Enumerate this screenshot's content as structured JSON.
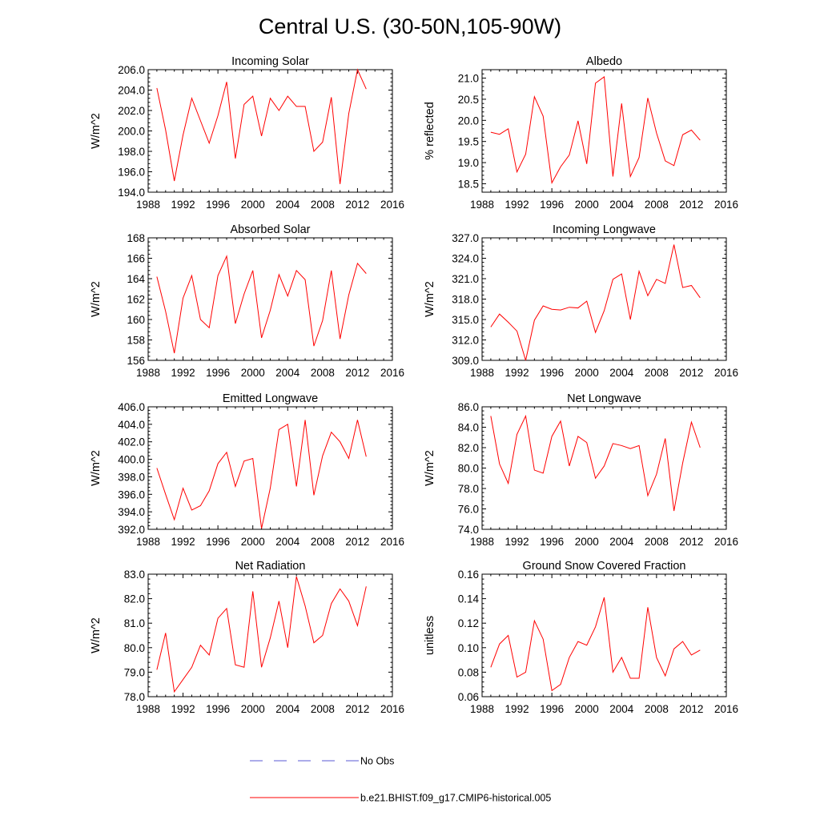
{
  "figure": {
    "title": "Central U.S. (30-50N,105-90W)",
    "legend": [
      {
        "label": "No Obs",
        "color": "#5a5ad6",
        "style": "dashed"
      },
      {
        "label": "b.e21.BHIST.f09_g17.CMIP6-historical.005",
        "color": "#ff0000",
        "style": "solid"
      }
    ]
  },
  "chart_data": [
    {
      "type": "line",
      "title": "Incoming Solar",
      "xlabel": "",
      "ylabel": "W/m^2",
      "xlim": [
        1988,
        2016
      ],
      "ylim": [
        194.0,
        206.0
      ],
      "xticks": [
        "1988",
        "1992",
        "1996",
        "2000",
        "2004",
        "2008",
        "2012",
        "2016"
      ],
      "yticks": [
        "194.0",
        "196.0",
        "198.0",
        "200.0",
        "202.0",
        "204.0",
        "206.0"
      ],
      "series": [
        {
          "name": "b.e21.BHIST.f09_g17.CMIP6-historical.005",
          "x": [
            1989,
            1990,
            1991,
            1992,
            1993,
            1994,
            1995,
            1996,
            1997,
            1998,
            1999,
            2000,
            2001,
            2002,
            2003,
            2004,
            2005,
            2006,
            2007,
            2008,
            2009,
            2010,
            2011,
            2012,
            2013
          ],
          "values": [
            204.2,
            200.1,
            195.1,
            199.6,
            203.2,
            201.0,
            198.8,
            201.5,
            204.8,
            197.3,
            202.6,
            203.4,
            199.5,
            203.2,
            202.0,
            203.4,
            202.4,
            202.4,
            198.0,
            198.9,
            203.3,
            194.8,
            201.7,
            206.0,
            204.1
          ]
        }
      ]
    },
    {
      "type": "line",
      "title": "Albedo",
      "xlabel": "",
      "ylabel": "% reflected",
      "xlim": [
        1988,
        2016
      ],
      "ylim": [
        18.3,
        21.2
      ],
      "xticks": [
        "1988",
        "1992",
        "1996",
        "2000",
        "2004",
        "2008",
        "2012",
        "2016"
      ],
      "yticks": [
        "18.5",
        "19.0",
        "19.5",
        "20.0",
        "20.5",
        "21.0"
      ],
      "series": [
        {
          "name": "b.e21.BHIST.f09_g17.CMIP6-historical.005",
          "x": [
            1989,
            1990,
            1991,
            1992,
            1993,
            1994,
            1995,
            1996,
            1997,
            1998,
            1999,
            2000,
            2001,
            2002,
            2003,
            2004,
            2005,
            2006,
            2007,
            2008,
            2009,
            2010,
            2011,
            2012,
            2013
          ],
          "values": [
            19.72,
            19.67,
            19.8,
            18.78,
            19.2,
            20.56,
            20.1,
            18.52,
            18.9,
            19.18,
            19.99,
            18.97,
            20.88,
            21.03,
            18.67,
            20.4,
            18.67,
            19.12,
            20.53,
            19.7,
            19.04,
            18.93,
            19.66,
            19.77,
            19.53
          ]
        }
      ]
    },
    {
      "type": "line",
      "title": "Absorbed Solar",
      "xlabel": "",
      "ylabel": "W/m^2",
      "xlim": [
        1988,
        2016
      ],
      "ylim": [
        156.0,
        168.0
      ],
      "xticks": [
        "1988",
        "1992",
        "1996",
        "2000",
        "2004",
        "2008",
        "2012",
        "2016"
      ],
      "yticks": [
        "156",
        "158",
        "160",
        "162",
        "164",
        "166",
        "168"
      ],
      "series": [
        {
          "name": "b.e21.BHIST.f09_g17.CMIP6-historical.005",
          "x": [
            1989,
            1990,
            1991,
            1992,
            1993,
            1994,
            1995,
            1996,
            1997,
            1998,
            1999,
            2000,
            2001,
            2002,
            2003,
            2004,
            2005,
            2006,
            2007,
            2008,
            2009,
            2010,
            2011,
            2012,
            2013
          ],
          "values": [
            164.2,
            160.8,
            156.7,
            162.1,
            164.3,
            160.0,
            159.2,
            164.3,
            166.2,
            159.6,
            162.5,
            164.8,
            158.2,
            160.9,
            164.4,
            162.3,
            164.8,
            163.9,
            157.4,
            159.9,
            164.8,
            158.1,
            162.4,
            165.5,
            164.5
          ]
        }
      ]
    },
    {
      "type": "line",
      "title": "Incoming Longwave",
      "xlabel": "",
      "ylabel": "W/m^2",
      "xlim": [
        1988,
        2016
      ],
      "ylim": [
        309.0,
        327.0
      ],
      "xticks": [
        "1988",
        "1992",
        "1996",
        "2000",
        "2004",
        "2008",
        "2012",
        "2016"
      ],
      "yticks": [
        "309.0",
        "312.0",
        "315.0",
        "318.0",
        "321.0",
        "324.0",
        "327.0"
      ],
      "series": [
        {
          "name": "b.e21.BHIST.f09_g17.CMIP6-historical.005",
          "x": [
            1989,
            1990,
            1991,
            1992,
            1993,
            1994,
            1995,
            1996,
            1997,
            1998,
            1999,
            2000,
            2001,
            2002,
            2003,
            2004,
            2005,
            2006,
            2007,
            2008,
            2009,
            2010,
            2011,
            2012,
            2013
          ],
          "values": [
            313.9,
            315.8,
            314.6,
            313.3,
            309.0,
            314.9,
            317.0,
            316.5,
            316.4,
            316.8,
            316.7,
            317.7,
            313.1,
            316.3,
            320.9,
            321.7,
            315.0,
            322.1,
            318.5,
            320.9,
            320.3,
            326.0,
            319.7,
            320.0,
            318.2
          ]
        }
      ]
    },
    {
      "type": "line",
      "title": "Emitted Longwave",
      "xlabel": "",
      "ylabel": "W/m^2",
      "xlim": [
        1988,
        2016
      ],
      "ylim": [
        392.0,
        406.0
      ],
      "xticks": [
        "1988",
        "1992",
        "1996",
        "2000",
        "2004",
        "2008",
        "2012",
        "2016"
      ],
      "yticks": [
        "392.0",
        "394.0",
        "396.0",
        "398.0",
        "400.0",
        "402.0",
        "404.0",
        "406.0"
      ],
      "series": [
        {
          "name": "b.e21.BHIST.f09_g17.CMIP6-historical.005",
          "x": [
            1989,
            1990,
            1991,
            1992,
            1993,
            1994,
            1995,
            1996,
            1997,
            1998,
            1999,
            2000,
            2001,
            2002,
            2003,
            2004,
            2005,
            2006,
            2007,
            2008,
            2009,
            2010,
            2011,
            2012,
            2013
          ],
          "values": [
            399.0,
            396.0,
            393.1,
            396.7,
            394.2,
            394.7,
            396.4,
            399.5,
            400.8,
            396.9,
            399.8,
            400.1,
            392.1,
            396.7,
            403.4,
            404.0,
            396.9,
            404.5,
            395.9,
            400.4,
            403.1,
            402.0,
            400.1,
            404.5,
            400.3
          ]
        }
      ]
    },
    {
      "type": "line",
      "title": "Net Longwave",
      "xlabel": "",
      "ylabel": "W/m^2",
      "xlim": [
        1988,
        2016
      ],
      "ylim": [
        74.0,
        86.0
      ],
      "xticks": [
        "1988",
        "1992",
        "1996",
        "2000",
        "2004",
        "2008",
        "2012",
        "2016"
      ],
      "yticks": [
        "74.0",
        "76.0",
        "78.0",
        "80.0",
        "82.0",
        "84.0",
        "86.0"
      ],
      "series": [
        {
          "name": "b.e21.BHIST.f09_g17.CMIP6-historical.005",
          "x": [
            1989,
            1990,
            1991,
            1992,
            1993,
            1994,
            1995,
            1996,
            1997,
            1998,
            1999,
            2000,
            2001,
            2002,
            2003,
            2004,
            2005,
            2006,
            2007,
            2008,
            2009,
            2010,
            2011,
            2012,
            2013
          ],
          "values": [
            85.1,
            80.4,
            78.5,
            83.3,
            85.1,
            79.8,
            79.5,
            83.1,
            84.6,
            80.2,
            83.1,
            82.5,
            79.0,
            80.2,
            82.4,
            82.2,
            81.9,
            82.2,
            77.3,
            79.4,
            82.9,
            75.8,
            80.5,
            84.5,
            82.0
          ]
        }
      ]
    },
    {
      "type": "line",
      "title": "Net Radiation",
      "xlabel": "",
      "ylabel": "W/m^2",
      "xlim": [
        1988,
        2016
      ],
      "ylim": [
        78.0,
        83.0
      ],
      "xticks": [
        "1988",
        "1992",
        "1996",
        "2000",
        "2004",
        "2008",
        "2012",
        "2016"
      ],
      "yticks": [
        "78.0",
        "79.0",
        "80.0",
        "81.0",
        "82.0",
        "83.0"
      ],
      "series": [
        {
          "name": "b.e21.BHIST.f09_g17.CMIP6-historical.005",
          "x": [
            1989,
            1990,
            1991,
            1992,
            1993,
            1994,
            1995,
            1996,
            1997,
            1998,
            1999,
            2000,
            2001,
            2002,
            2003,
            2004,
            2005,
            2006,
            2007,
            2008,
            2009,
            2010,
            2011,
            2012,
            2013
          ],
          "values": [
            79.1,
            80.6,
            78.2,
            78.7,
            79.2,
            80.1,
            79.7,
            81.2,
            81.6,
            79.3,
            79.2,
            82.3,
            79.2,
            80.4,
            81.9,
            80.0,
            82.9,
            81.7,
            80.2,
            80.5,
            81.8,
            82.4,
            81.9,
            80.9,
            82.5
          ]
        }
      ]
    },
    {
      "type": "line",
      "title": "Ground Snow Covered Fraction",
      "xlabel": "",
      "ylabel": "unitless",
      "xlim": [
        1988,
        2016
      ],
      "ylim": [
        0.06,
        0.16
      ],
      "xticks": [
        "1988",
        "1992",
        "1996",
        "2000",
        "2004",
        "2008",
        "2012",
        "2016"
      ],
      "yticks": [
        "0.06",
        "0.08",
        "0.10",
        "0.12",
        "0.14",
        "0.16"
      ],
      "series": [
        {
          "name": "b.e21.BHIST.f09_g17.CMIP6-historical.005",
          "x": [
            1989,
            1990,
            1991,
            1992,
            1993,
            1994,
            1995,
            1996,
            1997,
            1998,
            1999,
            2000,
            2001,
            2002,
            2003,
            2004,
            2005,
            2006,
            2007,
            2008,
            2009,
            2010,
            2011,
            2012,
            2013
          ],
          "values": [
            0.084,
            0.103,
            0.11,
            0.076,
            0.08,
            0.122,
            0.107,
            0.065,
            0.07,
            0.092,
            0.105,
            0.102,
            0.117,
            0.141,
            0.08,
            0.092,
            0.075,
            0.075,
            0.133,
            0.092,
            0.077,
            0.099,
            0.105,
            0.094,
            0.098
          ]
        }
      ]
    }
  ]
}
